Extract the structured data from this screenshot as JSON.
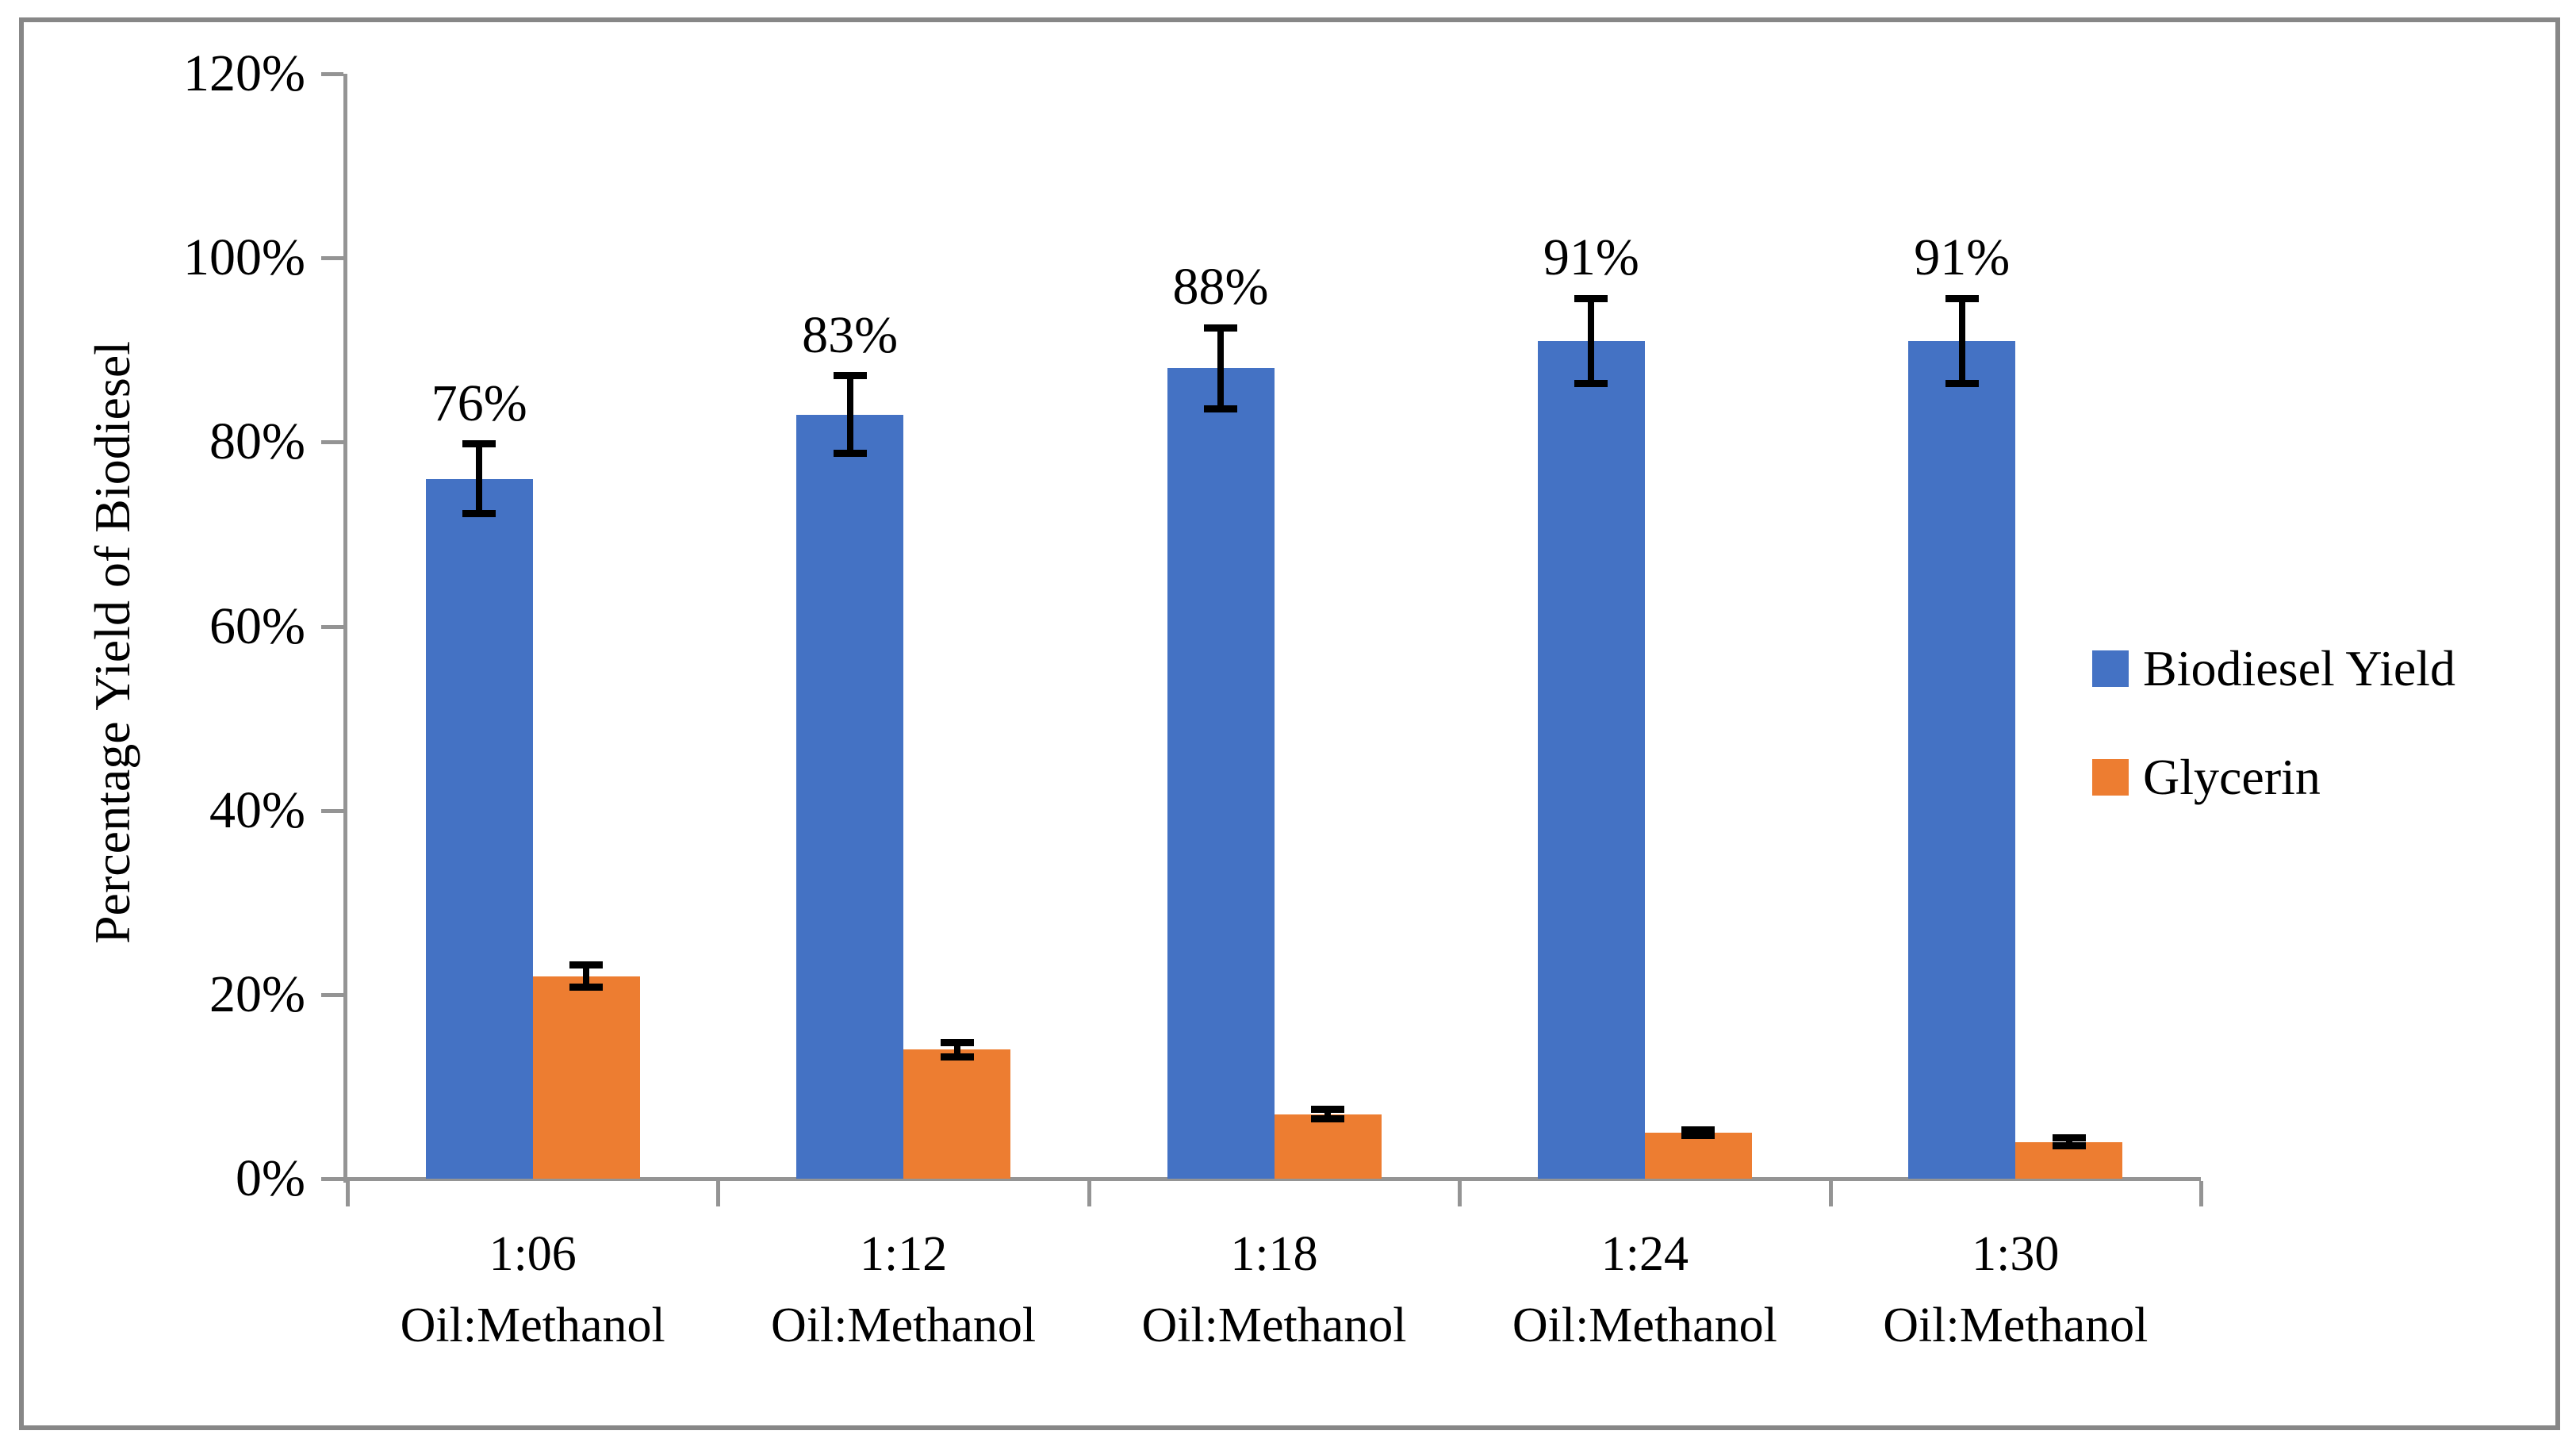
{
  "chart_data": {
    "type": "bar",
    "title": "",
    "ylabel": "Percentage Yield of Biodiesel",
    "xlabel": "",
    "grid": false,
    "legend_position": "right-middle",
    "y_axis": {
      "min": 0,
      "max": 120,
      "unit": "percent",
      "ticks": [
        {
          "value": 0,
          "label": "0%"
        },
        {
          "value": 20,
          "label": "20%"
        },
        {
          "value": 40,
          "label": "40%"
        },
        {
          "value": 60,
          "label": "60%"
        },
        {
          "value": 80,
          "label": "80%"
        },
        {
          "value": 100,
          "label": "100%"
        },
        {
          "value": 120,
          "label": "120%"
        }
      ]
    },
    "categories": [
      {
        "top": "1:06",
        "bottom": "Oil:Methanol"
      },
      {
        "top": "1:12",
        "bottom": "Oil:Methanol"
      },
      {
        "top": "1:18",
        "bottom": "Oil:Methanol"
      },
      {
        "top": "1:24",
        "bottom": "Oil:Methanol"
      },
      {
        "top": "1:30",
        "bottom": "Oil:Methanol"
      }
    ],
    "series": [
      {
        "name": "Biodiesel Yield",
        "color": "#4472C4",
        "unit": "%",
        "values": [
          76,
          83,
          88,
          91,
          91
        ],
        "error_bars": [
          3.8,
          4.2,
          4.4,
          4.6,
          4.6
        ],
        "data_labels": [
          "76%",
          "83%",
          "88%",
          "91%",
          "91%"
        ]
      },
      {
        "name": "Glycerin",
        "color": "#ED7D31",
        "unit": "%",
        "values": [
          22,
          14,
          7,
          5,
          4
        ],
        "error_bars": [
          1.2,
          0.8,
          0.5,
          0.3,
          0.4
        ],
        "data_labels": null
      }
    ]
  },
  "colors": {
    "background": "#FFFFFF",
    "border": "#878787",
    "axis": "#949494",
    "error_bar": "#000000",
    "text": "#000000"
  }
}
